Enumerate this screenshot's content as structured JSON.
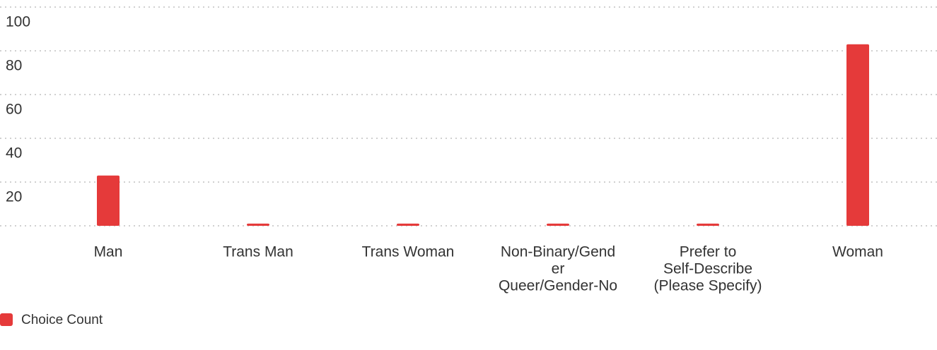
{
  "chart_data": {
    "type": "bar",
    "categories": [
      [
        "Man"
      ],
      [
        "Trans Man"
      ],
      [
        "Trans Woman"
      ],
      [
        "Non-Binary/Gend",
        "er",
        "Queer/Gender-No"
      ],
      [
        "Prefer to",
        "Self-Describe",
        "(Please Specify)"
      ],
      [
        "Woman"
      ]
    ],
    "series": [
      {
        "name": "Choice Count",
        "color": "#e53a3a",
        "values": [
          23,
          1,
          1,
          1,
          1,
          83
        ]
      }
    ],
    "ylim": [
      0,
      100
    ],
    "yticks": [
      20,
      40,
      60,
      80,
      100
    ],
    "grid": true,
    "legend": "bottom-left"
  }
}
